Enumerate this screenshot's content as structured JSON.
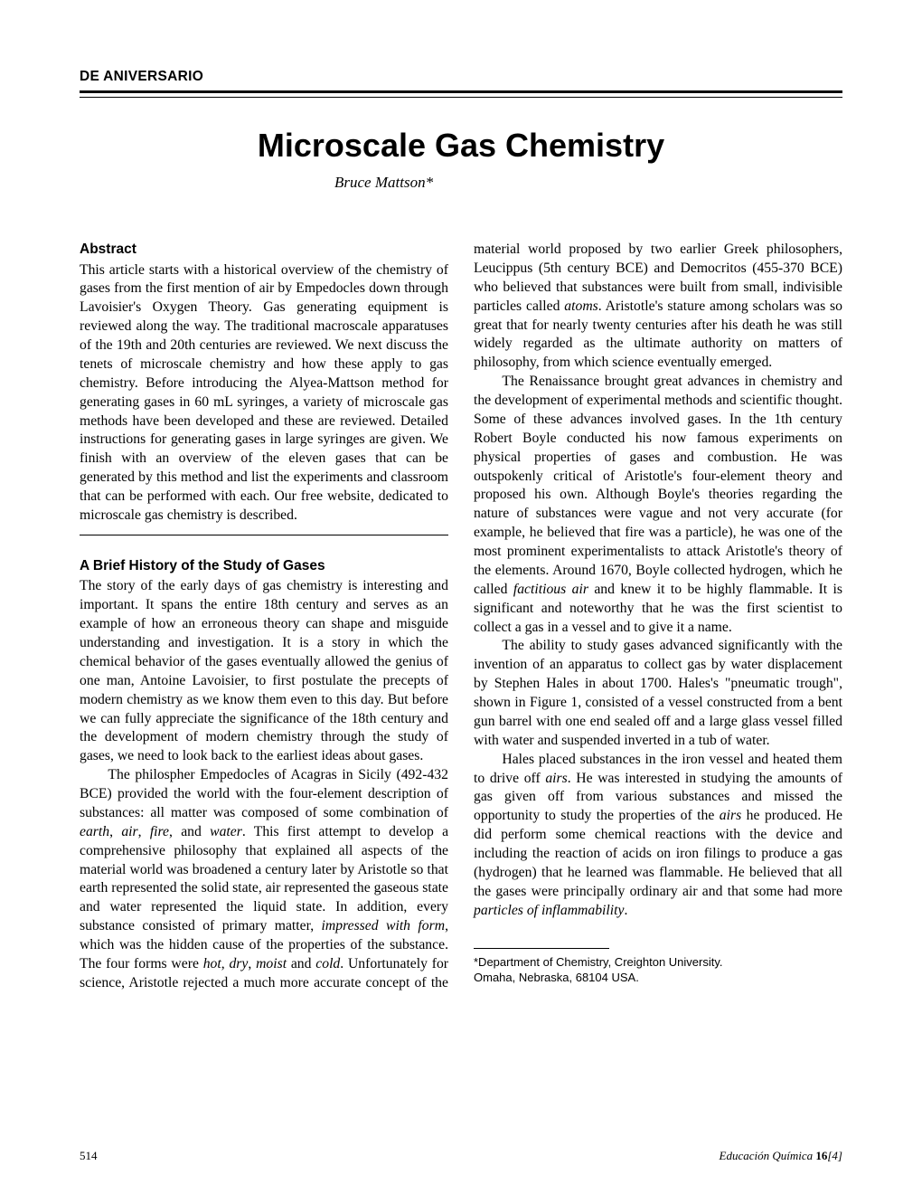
{
  "section_label": "DE ANIVERSARIO",
  "title": "Microscale Gas Chemistry",
  "author": "Bruce Mattson*",
  "headings": {
    "abstract": "Abstract",
    "history": "A Brief History of the Study of Gases"
  },
  "abstract": "This article starts with a historical overview of the chemistry of gases from the first mention of air by Empedocles down through Lavoisier's Oxygen Theory. Gas generating equipment is reviewed along the way. The traditional macroscale apparatuses of the 19th and 20th centuries are reviewed. We next discuss the tenets of microscale chemistry and how these apply to gas chemistry. Before introducing the Alyea-Mattson method for generating gases in 60 mL syringes, a variety of microscale gas methods have been developed and these are reviewed. Detailed instructions for generating gases in large syringes are given. We finish with an overview of the eleven gases that can be generated by this method and list the experiments and classroom that can be performed with each. Our free website, dedicated to microscale gas chemistry is described.",
  "history": {
    "p1": "The story of the early days of gas chemistry is interesting and important. It spans the entire 18th century and serves as an example of how an erroneous theory can shape and misguide understanding and investigation. It is a story in which the chemical behavior of the gases eventually allowed the genius of one man, Antoine Lavoisier, to first postulate the precepts of modern chemistry as we know them even to this day. But before we can fully appreciate the significance of the 18th century and the development of modern chemistry through the study of gases, we need to look back to the earliest ideas about gases.",
    "p2a": "The philospher Empedocles of Acagras in Sicily (492-432 BCE) provided the world with the four-element description of substances: all matter was composed of some combination of ",
    "p2_earth": "earth",
    "p2_air": "air",
    "p2_fire": "fire",
    "p2_and": ", and ",
    "p2_water": "water",
    "p2b": ". This first attempt to develop a comprehensive philosophy that explained all aspects of the material world was broadened a century later by Aristotle so that earth represented the solid state, air represented the gaseous state and water represented the liquid state. In addition, every substance consisted of ",
    "p3a": "primary matter, ",
    "p3_impressed": "impressed with form",
    "p3b": ", which was the hidden cause of the properties of the substance. The four forms were ",
    "p3_hot": "hot",
    "p3_dry": "dry",
    "p3_moist": "moist",
    "p3_cold": "cold",
    "p3_and": " and ",
    "p3c": ". Unfortunately for science, Aristotle rejected a much more accurate concept of the material world proposed by two earlier Greek philosophers, Leucippus (5th century BCE) and Democritos (455-370 BCE) who believed that substances were built from small, indivisible particles called ",
    "p3_atoms": "atoms",
    "p3d": ". Aristotle's stature among scholars was so great that for nearly twenty centuries after his death he was still widely regarded as the ultimate authority on matters of philosophy, from which science eventually emerged.",
    "p4a": "The Renaissance brought great advances in chemistry and the development of experimental methods and scientific thought. Some of these advances involved gases. In the 1th century Robert Boyle conducted his now famous experiments on physical properties of gases and combustion. He was outspokenly critical of Aristotle's four-element theory and proposed his own. Although Boyle's theories regarding the nature of substances were vague and not very accurate (for example, he believed that fire was a particle), he was one of the most prominent experimentalists to attack Aristotle's theory of the elements. Around 1670, Boyle collected hydrogen, which he called ",
    "p4_factitious": "factitious air",
    "p4b": " and knew it to be highly flammable. It is significant and noteworthy that he was the first scientist to collect a gas in a vessel and to give it a name.",
    "p5": "The ability to study gases advanced significantly with the invention of an apparatus to collect gas by water displacement by Stephen Hales in about 1700. Hales's \"pneumatic trough\", shown in Figure 1, consisted of a vessel constructed from a bent gun barrel with one end sealed off and a large glass vessel filled with water and suspended inverted in a tub of water.",
    "p6a": "Hales placed substances in the iron vessel and heated them to drive off ",
    "p6_airs1": "airs",
    "p6b": ". He was interested in studying the amounts of gas given off from various substances and missed the opportunity to study the properties of the ",
    "p6_airs2": "airs",
    "p6c": " he produced. He did perform some chemical reactions with the device and including the reaction of acids on iron filings to produce a gas (hydrogen) that he learned was flammable. He believed that all the gases were principally ordinary air and that some had more ",
    "p6_particles": "particles of inflammability",
    "p6d": "."
  },
  "footnote": {
    "line1": "*Department of Chemistry, Creighton University.",
    "line2": "Omaha, Nebraska, 68104 USA."
  },
  "footer": {
    "page": "514",
    "journal": "Educación Química ",
    "vol": "16",
    "issue": "[4]"
  }
}
